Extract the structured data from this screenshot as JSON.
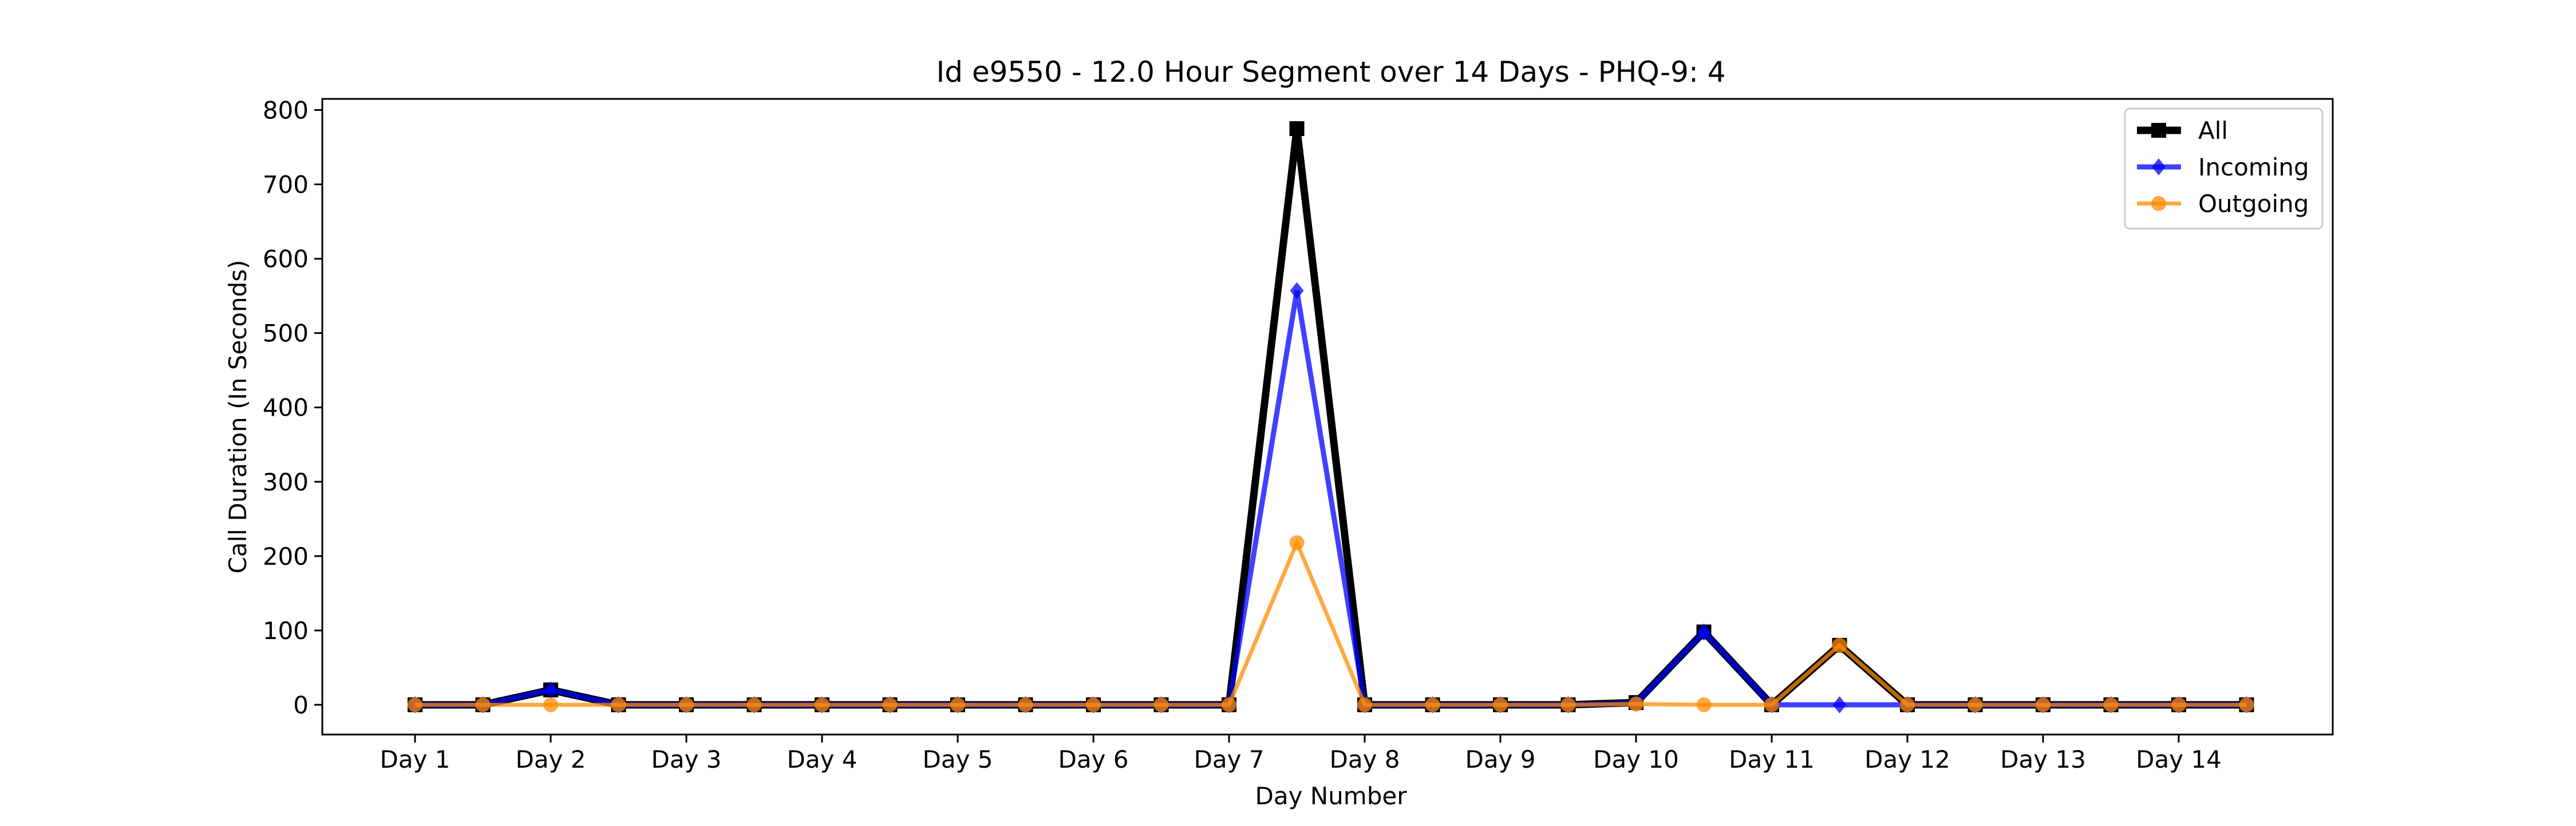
{
  "chart_data": {
    "type": "line",
    "title": "Id e9550 - 12.0 Hour Segment over 14 Days - PHQ-9: 4",
    "xlabel": "Day Number",
    "ylabel": "Call Duration (In Seconds)",
    "ylim": [
      -40,
      815
    ],
    "yticks": [
      0,
      100,
      200,
      300,
      400,
      500,
      600,
      700,
      800
    ],
    "xtick_labels": [
      "Day 1",
      "Day 2",
      "Day 3",
      "Day 4",
      "Day 5",
      "Day 6",
      "Day 7",
      "Day 8",
      "Day 9",
      "Day 10",
      "Day 11",
      "Day 12",
      "Day 13",
      "Day 14"
    ],
    "x_segments": 28,
    "grid": false,
    "legend_position": "top-right",
    "series": [
      {
        "name": "All",
        "color": "#000000",
        "marker": "square",
        "values": [
          0,
          0,
          20,
          0,
          0,
          0,
          0,
          0,
          0,
          0,
          0,
          0,
          0,
          775,
          0,
          0,
          0,
          0,
          3,
          98,
          0,
          80,
          0,
          0,
          0,
          0,
          0,
          0
        ]
      },
      {
        "name": "Incoming",
        "color": "#0000ff",
        "marker": "diamond",
        "values": [
          0,
          0,
          20,
          0,
          0,
          0,
          0,
          0,
          0,
          0,
          0,
          0,
          0,
          557,
          0,
          0,
          0,
          0,
          2,
          98,
          0,
          0,
          0,
          0,
          0,
          0,
          0,
          0
        ]
      },
      {
        "name": "Outgoing",
        "color": "#ff8c00",
        "marker": "circle",
        "values": [
          0,
          0,
          0,
          0,
          0,
          0,
          0,
          0,
          0,
          0,
          0,
          0,
          0,
          218,
          0,
          0,
          0,
          0,
          1,
          0,
          0,
          80,
          0,
          0,
          0,
          0,
          0,
          0
        ]
      }
    ]
  }
}
